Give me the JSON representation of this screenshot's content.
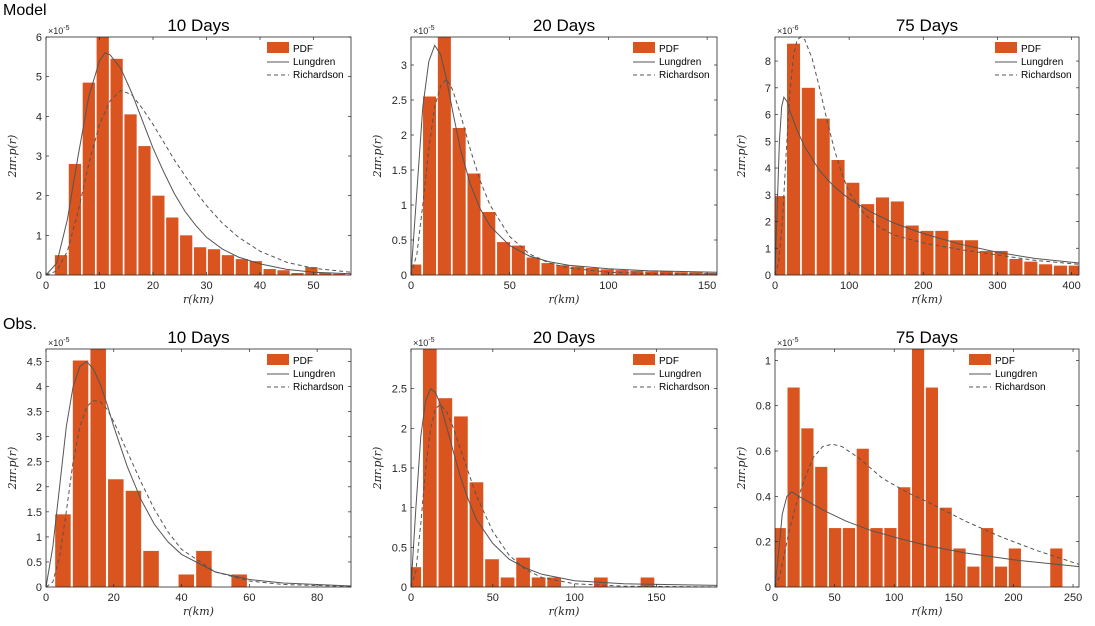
{
  "rows": [
    {
      "label": "Model"
    },
    {
      "label": "Obs."
    }
  ],
  "legend": {
    "pdf": "PDF",
    "lungdren": "Lungdren",
    "richardson": "Richardson"
  },
  "colors": {
    "bars": "#D9541E",
    "lungdren": "#555555",
    "richardson": "#555555"
  },
  "chart_data": [
    {
      "type": "bar",
      "title": "10 Days",
      "xlabel": "r(km)",
      "ylabel": "2πr.p(r)",
      "multiplier": "×10-5",
      "xlim": [
        0,
        57
      ],
      "ylim": [
        0,
        6
      ],
      "xticks": [
        0,
        10,
        20,
        30,
        40,
        50
      ],
      "yticks": [
        0,
        1,
        2,
        3,
        4,
        5,
        6
      ],
      "bin_width": 2.6,
      "bins": [
        2.8,
        5.4,
        8.0,
        10.6,
        13.2,
        15.8,
        18.4,
        21.0,
        23.6,
        26.2,
        28.8,
        31.4,
        34.0,
        36.6,
        39.2,
        41.8,
        44.4,
        47.0,
        49.6,
        52.2,
        54.8
      ],
      "values": [
        0.5,
        2.8,
        4.85,
        6.02,
        5.45,
        4.05,
        3.25,
        2.0,
        1.45,
        1.0,
        0.7,
        0.65,
        0.5,
        0.4,
        0.35,
        0.15,
        0.12,
        0.05,
        0.2,
        0.05,
        0.03
      ],
      "lungdren": [
        [
          0,
          0
        ],
        [
          2,
          0.3
        ],
        [
          4,
          1.4
        ],
        [
          6,
          3.0
        ],
        [
          8,
          4.5
        ],
        [
          10,
          5.4
        ],
        [
          11,
          5.6
        ],
        [
          12,
          5.55
        ],
        [
          14,
          5.2
        ],
        [
          16,
          4.6
        ],
        [
          18,
          3.9
        ],
        [
          20,
          3.2
        ],
        [
          22,
          2.6
        ],
        [
          24,
          2.05
        ],
        [
          26,
          1.6
        ],
        [
          28,
          1.25
        ],
        [
          30,
          0.95
        ],
        [
          33,
          0.65
        ],
        [
          36,
          0.45
        ],
        [
          40,
          0.28
        ],
        [
          45,
          0.14
        ],
        [
          50,
          0.07
        ],
        [
          57,
          0.03
        ]
      ],
      "richardson": [
        [
          0,
          0
        ],
        [
          2,
          0.1
        ],
        [
          4,
          0.6
        ],
        [
          6,
          1.6
        ],
        [
          8,
          2.8
        ],
        [
          10,
          3.8
        ],
        [
          12,
          4.4
        ],
        [
          14,
          4.65
        ],
        [
          16,
          4.55
        ],
        [
          18,
          4.2
        ],
        [
          20,
          3.8
        ],
        [
          22,
          3.35
        ],
        [
          24,
          2.9
        ],
        [
          26,
          2.5
        ],
        [
          28,
          2.1
        ],
        [
          30,
          1.75
        ],
        [
          33,
          1.3
        ],
        [
          36,
          0.95
        ],
        [
          40,
          0.6
        ],
        [
          45,
          0.32
        ],
        [
          50,
          0.17
        ],
        [
          57,
          0.07
        ]
      ]
    },
    {
      "type": "bar",
      "title": "20 Days",
      "xlabel": "r(km)",
      "ylabel": "2πr.p(r)",
      "multiplier": "×10-5",
      "xlim": [
        0,
        155
      ],
      "ylim": [
        0,
        3.4
      ],
      "xticks": [
        0,
        50,
        100,
        150
      ],
      "yticks": [
        0,
        0.5,
        1,
        1.5,
        2,
        2.5,
        3
      ],
      "bin_width": 7.5,
      "bins": [
        1.9,
        9.4,
        16.9,
        24.4,
        31.9,
        39.4,
        46.9,
        54.4,
        61.9,
        69.4,
        76.9,
        84.4,
        91.9,
        99.4,
        106.9,
        114.4,
        121.9,
        129.4,
        136.9,
        144.4,
        151.9
      ],
      "values": [
        0.15,
        2.55,
        3.45,
        2.1,
        1.45,
        0.9,
        0.47,
        0.42,
        0.25,
        0.17,
        0.14,
        0.12,
        0.1,
        0.08,
        0.07,
        0.06,
        0.05,
        0.05,
        0.04,
        0.04,
        0.03
      ],
      "lungdren": [
        [
          0,
          0
        ],
        [
          3,
          1.2
        ],
        [
          6,
          2.4
        ],
        [
          9,
          3.05
        ],
        [
          12,
          3.28
        ],
        [
          15,
          3.15
        ],
        [
          18,
          2.8
        ],
        [
          21,
          2.35
        ],
        [
          25,
          1.8
        ],
        [
          30,
          1.3
        ],
        [
          35,
          0.95
        ],
        [
          40,
          0.7
        ],
        [
          50,
          0.42
        ],
        [
          60,
          0.27
        ],
        [
          70,
          0.19
        ],
        [
          80,
          0.14
        ],
        [
          100,
          0.09
        ],
        [
          120,
          0.06
        ],
        [
          155,
          0.04
        ]
      ],
      "richardson": [
        [
          0,
          0
        ],
        [
          3,
          0.3
        ],
        [
          6,
          1.0
        ],
        [
          9,
          1.8
        ],
        [
          12,
          2.4
        ],
        [
          15,
          2.7
        ],
        [
          18,
          2.8
        ],
        [
          21,
          2.65
        ],
        [
          25,
          2.3
        ],
        [
          30,
          1.8
        ],
        [
          35,
          1.35
        ],
        [
          40,
          1.0
        ],
        [
          50,
          0.55
        ],
        [
          60,
          0.3
        ],
        [
          70,
          0.17
        ],
        [
          80,
          0.1
        ],
        [
          100,
          0.04
        ],
        [
          120,
          0.02
        ],
        [
          155,
          0.01
        ]
      ]
    },
    {
      "type": "bar",
      "title": "75 Days",
      "xlabel": "r(km)",
      "ylabel": "2πr.p(r)",
      "multiplier": "×10-6",
      "xlim": [
        0,
        410
      ],
      "ylim": [
        0,
        8.9
      ],
      "xticks": [
        0,
        100,
        200,
        300,
        400
      ],
      "yticks": [
        0,
        1,
        2,
        3,
        4,
        5,
        6,
        7,
        8
      ],
      "bin_width": 20,
      "bins": [
        5,
        25,
        45,
        65,
        85,
        105,
        125,
        145,
        165,
        185,
        205,
        225,
        245,
        265,
        285,
        305,
        325,
        345,
        365,
        385,
        405
      ],
      "values": [
        2.95,
        8.65,
        7.0,
        5.85,
        4.3,
        3.45,
        2.65,
        2.9,
        2.75,
        1.85,
        1.65,
        1.65,
        1.3,
        1.3,
        0.9,
        0.9,
        0.6,
        0.5,
        0.4,
        0.35,
        0.35
      ],
      "lungdren": [
        [
          0,
          0
        ],
        [
          3,
          2.5
        ],
        [
          6,
          5.0
        ],
        [
          9,
          6.3
        ],
        [
          12,
          6.65
        ],
        [
          16,
          6.5
        ],
        [
          20,
          6.15
        ],
        [
          30,
          5.4
        ],
        [
          40,
          4.8
        ],
        [
          60,
          3.9
        ],
        [
          80,
          3.3
        ],
        [
          100,
          2.85
        ],
        [
          130,
          2.35
        ],
        [
          160,
          1.95
        ],
        [
          200,
          1.55
        ],
        [
          250,
          1.15
        ],
        [
          300,
          0.85
        ],
        [
          350,
          0.62
        ],
        [
          410,
          0.45
        ]
      ],
      "richardson": [
        [
          0,
          0
        ],
        [
          5,
          0.5
        ],
        [
          10,
          2.0
        ],
        [
          15,
          4.5
        ],
        [
          20,
          6.8
        ],
        [
          25,
          8.2
        ],
        [
          30,
          8.8
        ],
        [
          35,
          8.95
        ],
        [
          40,
          8.8
        ],
        [
          50,
          8.1
        ],
        [
          60,
          7.0
        ],
        [
          70,
          5.8
        ],
        [
          80,
          4.7
        ],
        [
          90,
          3.8
        ],
        [
          100,
          3.1
        ],
        [
          120,
          2.3
        ],
        [
          140,
          1.8
        ],
        [
          160,
          1.5
        ],
        [
          200,
          1.2
        ],
        [
          250,
          0.95
        ],
        [
          300,
          0.75
        ],
        [
          350,
          0.55
        ],
        [
          410,
          0.4
        ]
      ]
    },
    {
      "type": "bar",
      "title": "10 Days",
      "xlabel": "r(km)",
      "ylabel": "2πr.p(r)",
      "multiplier": "×10-5",
      "xlim": [
        0,
        90
      ],
      "ylim": [
        0,
        4.75
      ],
      "xticks": [
        0,
        20,
        40,
        60,
        80
      ],
      "yticks": [
        0,
        0.5,
        1,
        1.5,
        2,
        2.5,
        3,
        3.5,
        4,
        4.5
      ],
      "bin_width": 5.2,
      "bins": [
        5,
        10.2,
        15.4,
        20.6,
        25.8,
        31,
        36.2,
        41.4,
        46.6,
        51.8,
        57
      ],
      "values": [
        1.45,
        4.52,
        4.82,
        2.15,
        1.92,
        0.72,
        0,
        0.25,
        0.72,
        0,
        0.25
      ],
      "lungdren": [
        [
          0,
          0
        ],
        [
          2,
          0.8
        ],
        [
          4,
          2.0
        ],
        [
          6,
          3.2
        ],
        [
          8,
          4.0
        ],
        [
          10,
          4.4
        ],
        [
          12,
          4.5
        ],
        [
          14,
          4.35
        ],
        [
          16,
          4.05
        ],
        [
          18,
          3.65
        ],
        [
          20,
          3.2
        ],
        [
          24,
          2.4
        ],
        [
          28,
          1.75
        ],
        [
          32,
          1.25
        ],
        [
          36,
          0.9
        ],
        [
          40,
          0.65
        ],
        [
          50,
          0.3
        ],
        [
          60,
          0.15
        ],
        [
          70,
          0.08
        ],
        [
          90,
          0.02
        ]
      ],
      "richardson": [
        [
          0,
          0
        ],
        [
          2,
          0.1
        ],
        [
          4,
          0.6
        ],
        [
          6,
          1.5
        ],
        [
          8,
          2.5
        ],
        [
          10,
          3.2
        ],
        [
          12,
          3.6
        ],
        [
          14,
          3.72
        ],
        [
          16,
          3.7
        ],
        [
          18,
          3.55
        ],
        [
          20,
          3.3
        ],
        [
          24,
          2.7
        ],
        [
          28,
          2.1
        ],
        [
          32,
          1.55
        ],
        [
          36,
          1.1
        ],
        [
          40,
          0.75
        ],
        [
          50,
          0.3
        ],
        [
          60,
          0.12
        ],
        [
          70,
          0.05
        ],
        [
          90,
          0.01
        ]
      ]
    },
    {
      "type": "bar",
      "title": "20 Days",
      "xlabel": "r(km)",
      "ylabel": "2πr.p(r)",
      "multiplier": "×10-5",
      "xlim": [
        0,
        187
      ],
      "ylim": [
        0,
        3.0
      ],
      "xticks": [
        0,
        50,
        100,
        150
      ],
      "yticks": [
        0,
        0.5,
        1,
        1.5,
        2,
        2.5
      ],
      "bin_width": 9.5,
      "bins": [
        2,
        11.5,
        21,
        30.5,
        40,
        49.5,
        59,
        68.5,
        78,
        87.5,
        97,
        106.5,
        116,
        125.5,
        135,
        144.5
      ],
      "values": [
        0.25,
        3.05,
        2.38,
        2.15,
        1.32,
        0.35,
        0.12,
        0.37,
        0.12,
        0.12,
        0,
        0,
        0.12,
        0,
        0,
        0.12
      ],
      "lungdren": [
        [
          0,
          0
        ],
        [
          3,
          1.0
        ],
        [
          6,
          1.9
        ],
        [
          9,
          2.35
        ],
        [
          12,
          2.5
        ],
        [
          15,
          2.45
        ],
        [
          18,
          2.3
        ],
        [
          22,
          2.0
        ],
        [
          26,
          1.7
        ],
        [
          30,
          1.4
        ],
        [
          35,
          1.1
        ],
        [
          40,
          0.85
        ],
        [
          50,
          0.55
        ],
        [
          60,
          0.35
        ],
        [
          70,
          0.24
        ],
        [
          80,
          0.16
        ],
        [
          100,
          0.08
        ],
        [
          130,
          0.04
        ],
        [
          187,
          0.02
        ]
      ],
      "richardson": [
        [
          0,
          0
        ],
        [
          3,
          0.2
        ],
        [
          6,
          0.8
        ],
        [
          9,
          1.5
        ],
        [
          12,
          2.0
        ],
        [
          15,
          2.25
        ],
        [
          18,
          2.3
        ],
        [
          22,
          2.2
        ],
        [
          26,
          2.0
        ],
        [
          30,
          1.75
        ],
        [
          35,
          1.45
        ],
        [
          40,
          1.15
        ],
        [
          50,
          0.7
        ],
        [
          60,
          0.4
        ],
        [
          70,
          0.22
        ],
        [
          80,
          0.12
        ],
        [
          100,
          0.04
        ],
        [
          130,
          0.01
        ],
        [
          187,
          0.0
        ]
      ]
    },
    {
      "type": "bar",
      "title": "75 Days",
      "xlabel": "r(km)",
      "ylabel": "2πr.p(r)",
      "multiplier": "×10-5",
      "xlim": [
        0,
        255
      ],
      "ylim": [
        0,
        1.05
      ],
      "xticks": [
        0,
        50,
        100,
        150,
        200,
        250
      ],
      "yticks": [
        0,
        0.2,
        0.4,
        0.6,
        0.8,
        1
      ],
      "bin_width": 11.6,
      "bins": [
        4,
        15.6,
        27.2,
        38.8,
        50.4,
        62,
        73.6,
        85.2,
        96.8,
        108.4,
        120,
        131.6,
        143.2,
        154.8,
        166.4,
        178,
        189.6,
        201.2,
        212.8,
        224.4,
        236,
        247.6
      ],
      "values": [
        0.26,
        0.88,
        0.7,
        0.53,
        0.26,
        0.26,
        0.61,
        0.26,
        0.26,
        0.44,
        1.05,
        0.88,
        0.35,
        0.17,
        0.09,
        0.26,
        0.09,
        0.17,
        0,
        0,
        0.17,
        0
      ],
      "lungdren": [
        [
          0,
          0
        ],
        [
          3,
          0.15
        ],
        [
          6,
          0.32
        ],
        [
          10,
          0.4
        ],
        [
          14,
          0.42
        ],
        [
          20,
          0.4
        ],
        [
          30,
          0.37
        ],
        [
          40,
          0.34
        ],
        [
          60,
          0.29
        ],
        [
          80,
          0.25
        ],
        [
          100,
          0.22
        ],
        [
          130,
          0.18
        ],
        [
          160,
          0.15
        ],
        [
          200,
          0.12
        ],
        [
          255,
          0.09
        ]
      ],
      "richardson": [
        [
          0,
          0
        ],
        [
          4,
          0.05
        ],
        [
          8,
          0.15
        ],
        [
          12,
          0.25
        ],
        [
          18,
          0.37
        ],
        [
          25,
          0.48
        ],
        [
          32,
          0.57
        ],
        [
          40,
          0.62
        ],
        [
          48,
          0.63
        ],
        [
          56,
          0.62
        ],
        [
          70,
          0.57
        ],
        [
          90,
          0.48
        ],
        [
          110,
          0.42
        ],
        [
          130,
          0.37
        ],
        [
          160,
          0.29
        ],
        [
          190,
          0.22
        ],
        [
          220,
          0.16
        ],
        [
          255,
          0.1
        ]
      ]
    }
  ]
}
